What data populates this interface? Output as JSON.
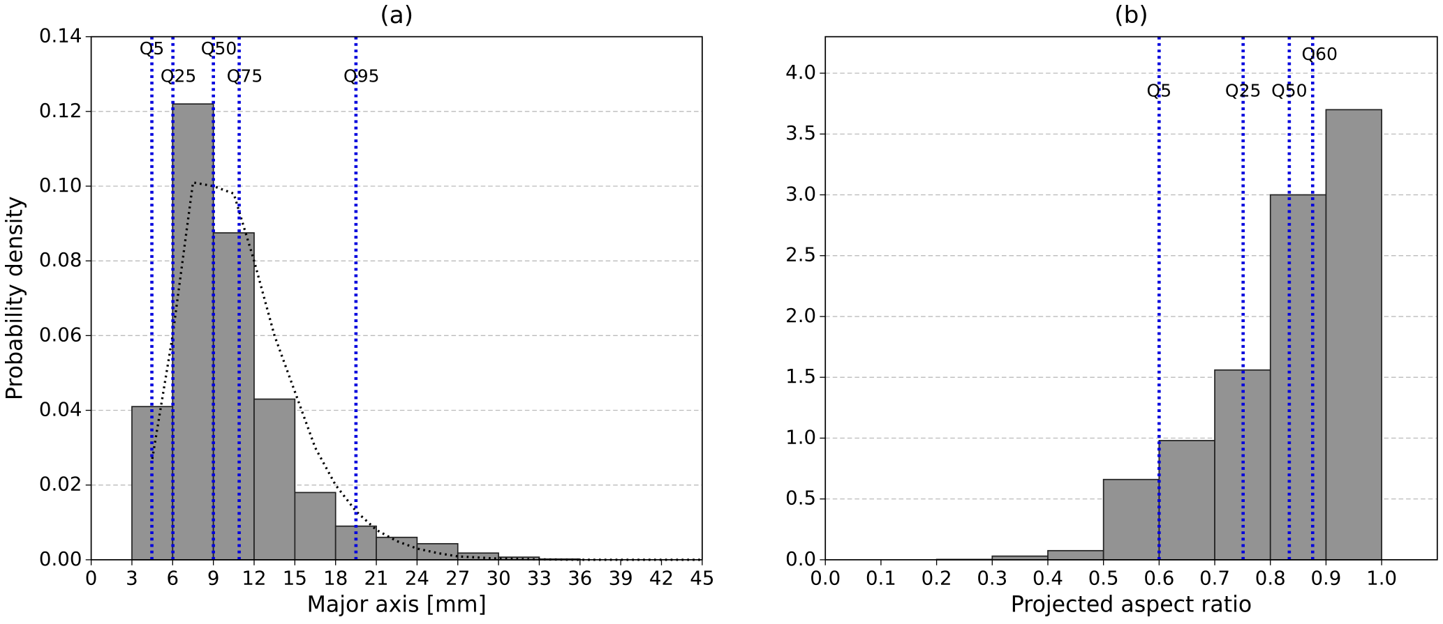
{
  "chart_data": [
    {
      "type": "histogram",
      "title": "(a)",
      "xlabel": "Major axis [mm]",
      "ylabel": "Probability density",
      "bins": [
        3,
        6,
        9,
        12,
        15,
        18,
        21,
        24,
        27,
        30,
        33,
        36
      ],
      "values": [
        0.041,
        0.122,
        0.0875,
        0.043,
        0.018,
        0.009,
        0.006,
        0.0043,
        0.0018,
        0.0007,
        0.0002
      ],
      "color": "#939393",
      "grid": true,
      "xlim": [
        0,
        45
      ],
      "xticks": [
        0,
        3,
        6,
        9,
        12,
        15,
        18,
        21,
        24,
        27,
        30,
        33,
        36,
        39,
        42,
        45
      ],
      "ylim": [
        0,
        0.14
      ],
      "yticks": [
        {
          "value": 0,
          "label": "0.00"
        },
        {
          "value": 0.02,
          "label": "0.02"
        },
        {
          "value": 0.04,
          "label": "0.04"
        },
        {
          "value": 0.06,
          "label": "0.06"
        },
        {
          "value": 0.08,
          "label": "0.08"
        },
        {
          "value": 0.1,
          "label": "0.10"
        },
        {
          "value": 0.12,
          "label": "0.12"
        },
        {
          "value": 0.14,
          "label": "0.14"
        }
      ],
      "quantile_color": "#0000dd",
      "quantiles": [
        {
          "label": "Q5",
          "value": 4.47
        },
        {
          "label": "Q25",
          "value": 6.02
        },
        {
          "label": "Q50",
          "value": 9.0
        },
        {
          "label": "Q75",
          "value": 10.9
        },
        {
          "label": "Q95",
          "value": 19.5
        }
      ],
      "curve": {
        "x": [
          4.5,
          6,
          7.5,
          9,
          10.5,
          12,
          13.5,
          15,
          16.5,
          18,
          19.5,
          21,
          22.5,
          24,
          25.5,
          27,
          30,
          33,
          36,
          45
        ],
        "values": [
          0.027,
          0.06,
          0.101,
          0.1,
          0.098,
          0.08,
          0.06,
          0.045,
          0.03,
          0.02,
          0.013,
          0.008,
          0.005,
          0.003,
          0.0018,
          0.0009,
          0.0003,
          0.0001,
          0,
          0
        ]
      }
    },
    {
      "type": "histogram",
      "title": "(b)",
      "xlabel": "Projected aspect ratio",
      "bins": [
        0.0,
        0.1,
        0.2,
        0.3,
        0.4,
        0.5,
        0.6,
        0.7,
        0.8,
        0.9,
        1.0
      ],
      "values": [
        0,
        0,
        0.003,
        0.03,
        0.075,
        0.66,
        0.98,
        1.56,
        3.0,
        3.7
      ],
      "color": "#939393",
      "grid": true,
      "xlim": [
        0,
        1.1
      ],
      "xticks": [
        {
          "value": 0,
          "label": "0.0"
        },
        0.1,
        0.2,
        0.3,
        0.4,
        0.5,
        0.6,
        0.7,
        0.8,
        0.9,
        {
          "value": 1,
          "label": "1.0"
        }
      ],
      "ylim": [
        0,
        4.3
      ],
      "yticks": [
        {
          "value": 0,
          "label": "0.0"
        },
        0.5,
        {
          "value": 1,
          "label": "1.0"
        },
        1.5,
        {
          "value": 2,
          "label": "2.0"
        },
        2.5,
        {
          "value": 3,
          "label": "3.0"
        },
        3.5,
        {
          "value": 4,
          "label": "4.0"
        }
      ],
      "quantile_color": "#0000dd",
      "quantiles": [
        {
          "label": "Q5",
          "value": 0.6
        },
        {
          "label": "Q25",
          "value": 0.751
        },
        {
          "label": "Q50",
          "value": 0.834
        },
        {
          "label": "Q60",
          "value": 0.876
        }
      ]
    }
  ]
}
